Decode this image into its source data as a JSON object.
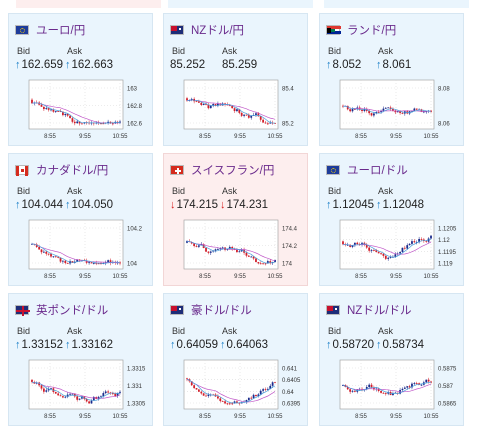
{
  "colors": {
    "up_arrow": "#1a7fc7",
    "down_arrow": "#d61c1c",
    "candle_up": "#1c2c8c",
    "candle_down": "#d21f2b",
    "ma_line": "#c058c8",
    "pair_text": "#6a2a8c"
  },
  "tiles": [
    {
      "id": "eur-jpy",
      "name": "ユーロ/円",
      "flag": "eu-flag-icon",
      "tint": "blue",
      "bid_label": "Bid",
      "ask_label": "Ask",
      "bid": "162.659",
      "ask": "162.663",
      "trend": "up",
      "chart": {
        "y_ticks": [
          "163",
          "162.8",
          "162.6"
        ],
        "x_ticks": [
          "8:55",
          "9:55",
          "10:55"
        ]
      }
    },
    {
      "id": "nzd-jpy",
      "name": "NZドル/円",
      "flag": "nz-flag-icon",
      "tint": "blue",
      "bid_label": "Bid",
      "ask_label": "Ask",
      "bid": "85.252",
      "ask": "85.259",
      "trend": "none",
      "chart": {
        "y_ticks": [
          "85.4",
          "85.2"
        ],
        "x_ticks": [
          "8:55",
          "9:55",
          "10:55"
        ]
      }
    },
    {
      "id": "zar-jpy",
      "name": "ランド/円",
      "flag": "za-flag-icon",
      "tint": "blue",
      "bid_label": "Bid",
      "ask_label": "Ask",
      "bid": "8.052",
      "ask": "8.061",
      "trend": "up",
      "chart": {
        "y_ticks": [
          "8.08",
          "8.06"
        ],
        "x_ticks": [
          "8:55",
          "9:55",
          "10:55"
        ]
      }
    },
    {
      "id": "cad-jpy",
      "name": "カナダドル/円",
      "flag": "ca-flag-icon",
      "tint": "blue",
      "bid_label": "Bid",
      "ask_label": "Ask",
      "bid": "104.044",
      "ask": "104.050",
      "trend": "up",
      "chart": {
        "y_ticks": [
          "104.2",
          "104"
        ],
        "x_ticks": [
          "8:55",
          "9:55",
          "10:55"
        ]
      }
    },
    {
      "id": "chf-jpy",
      "name": "スイスフラン/円",
      "flag": "ch-flag-icon",
      "tint": "red",
      "bid_label": "Bid",
      "ask_label": "Ask",
      "bid": "174.215",
      "ask": "174.231",
      "trend": "down",
      "chart": {
        "y_ticks": [
          "174.4",
          "174.2",
          "174"
        ],
        "x_ticks": [
          "8:55",
          "9:55",
          "10:55"
        ]
      }
    },
    {
      "id": "eur-usd",
      "name": "ユーロ/ドル",
      "flag": "eu-us-flag-icon",
      "tint": "blue",
      "bid_label": "Bid",
      "ask_label": "Ask",
      "bid": "1.12045",
      "ask": "1.12048",
      "trend": "up",
      "chart": {
        "y_ticks": [
          "1.1205",
          "1.12",
          "1.1195",
          "1.119"
        ],
        "x_ticks": [
          "8:55",
          "9:55",
          "10:55"
        ]
      }
    },
    {
      "id": "gbp-usd",
      "name": "英ポンド/ドル",
      "flag": "gb-us-flag-icon",
      "tint": "blue",
      "bid_label": "Bid",
      "ask_label": "Ask",
      "bid": "1.33152",
      "ask": "1.33162",
      "trend": "up",
      "chart": {
        "y_ticks": [
          "1.3315",
          "1.331",
          "1.3305"
        ],
        "x_ticks": [
          "8:55",
          "9:55",
          "10:55"
        ]
      }
    },
    {
      "id": "aud-usd",
      "name": "豪ドル/ドル",
      "flag": "au-us-flag-icon",
      "tint": "blue",
      "bid_label": "Bid",
      "ask_label": "Ask",
      "bid": "0.64059",
      "ask": "0.64063",
      "trend": "up",
      "chart": {
        "y_ticks": [
          "0.641",
          "0.6405",
          "0.64",
          "0.6395"
        ],
        "x_ticks": [
          "8:55",
          "9:55",
          "10:55"
        ]
      }
    },
    {
      "id": "nzd-usd",
      "name": "NZドル/ドル",
      "flag": "nz-us-flag-icon",
      "tint": "blue",
      "bid_label": "Bid",
      "ask_label": "Ask",
      "bid": "0.58720",
      "ask": "0.58734",
      "trend": "up",
      "chart": {
        "y_ticks": [
          "0.5875",
          "0.587",
          "0.5865"
        ],
        "x_ticks": [
          "8:55",
          "9:55",
          "10:55"
        ]
      }
    }
  ]
}
